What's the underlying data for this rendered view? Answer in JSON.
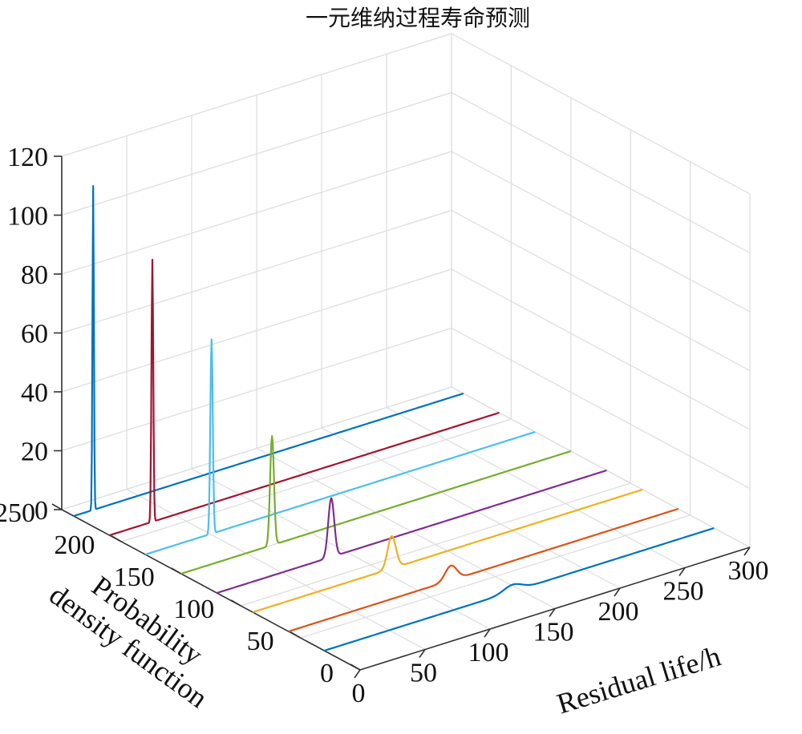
{
  "chart_data": {
    "type": "line",
    "title": "一元维纳过程寿命预测",
    "xlabel": "Residual life/h",
    "ylabel": "Probability density function",
    "ylabel_lines": [
      "Probability",
      "density function"
    ],
    "zlabel": "",
    "xlim": [
      0,
      300
    ],
    "ylim": [
      0,
      250
    ],
    "zlim": [
      0,
      120
    ],
    "x_ticks": [
      "0",
      "50",
      "100",
      "150",
      "200",
      "250",
      "300"
    ],
    "y_ticks": [
      "0",
      "50",
      "100",
      "150",
      "200",
      "250"
    ],
    "z_ticks": [
      "0",
      "20",
      "40",
      "60",
      "80",
      "100",
      "120"
    ],
    "grid": true,
    "series": [
      {
        "y_position": 240,
        "peak_x": 15,
        "peak_z": 110,
        "sigma": 0.55,
        "color": "#0072BD"
      },
      {
        "y_position": 210,
        "peak_x": 33,
        "peak_z": 89,
        "sigma": 0.7,
        "color": "#A2142F"
      },
      {
        "y_position": 180,
        "peak_x": 51,
        "peak_z": 66,
        "sigma": 0.95,
        "color": "#4DBEEE"
      },
      {
        "y_position": 150,
        "peak_x": 70,
        "peak_z": 37,
        "sigma": 1.5,
        "color": "#77AC30"
      },
      {
        "y_position": 120,
        "peak_x": 88,
        "peak_z": 20,
        "sigma": 2.3,
        "color": "#7E2F8E"
      },
      {
        "y_position": 90,
        "peak_x": 107,
        "peak_z": 11,
        "sigma": 3.2,
        "color": "#EDB120"
      },
      {
        "y_position": 60,
        "peak_x": 125,
        "peak_z": 5,
        "sigma": 4.5,
        "color": "#D95319"
      },
      {
        "y_position": 30,
        "peak_x": 145,
        "peak_z": 2.3,
        "sigma": 7.0,
        "color": "#0072BD"
      }
    ]
  }
}
